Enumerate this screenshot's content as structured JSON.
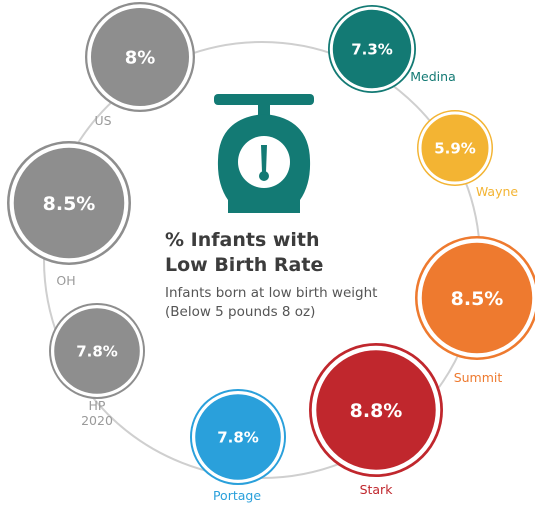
{
  "chart_data": {
    "type": "bubble",
    "title": "% Infants with Low Birth Rate",
    "title_lines": [
      "% Infants with",
      "Low Birth Rate"
    ],
    "subtitle_lines": [
      "Infants born at low birth weight",
      "(Below 5 pounds 8 oz)"
    ],
    "unit": "%",
    "points": [
      {
        "label": "Medina",
        "value": 7.3,
        "display": "7.3%",
        "color": "#137a74"
      },
      {
        "label": "Wayne",
        "value": 5.9,
        "display": "5.9%",
        "color": "#f3b433"
      },
      {
        "label": "Summit",
        "value": 8.5,
        "display": "8.5%",
        "color": "#ee7a2f"
      },
      {
        "label": "Stark",
        "value": 8.8,
        "display": "8.8%",
        "color": "#c0272d"
      },
      {
        "label": "Portage",
        "value": 7.8,
        "display": "7.8%",
        "color": "#2aa0db"
      },
      {
        "label_lines": [
          "HP",
          "2020"
        ],
        "value": 7.8,
        "display": "7.8%",
        "color": "#8e8e8e"
      },
      {
        "label": "OH",
        "value": 8.5,
        "display": "8.5%",
        "color": "#8e8e8e"
      },
      {
        "label": "US",
        "value": 8,
        "display": "8%",
        "color": "#8e8e8e"
      }
    ],
    "colors": {
      "icon": "#137a74",
      "ring": "#cfcfcf",
      "label_gray": "#9a9a9a"
    },
    "icon": "scale-icon"
  }
}
